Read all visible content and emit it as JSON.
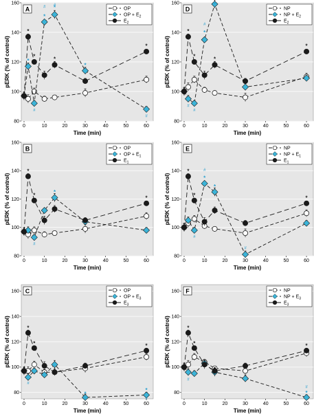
{
  "colors": {
    "panel_bg": "#e6e6e6",
    "black": "#1a1a1a",
    "blue": "#3cb4d8",
    "open": "#ffffff",
    "star_black": "#222222",
    "star_blue": "#2aa0d0"
  },
  "chart_data": [
    {
      "type": "line",
      "panel": "A",
      "xlabel": "Time (min)",
      "ylabel": "pERK (% of control)",
      "xlim": [
        0,
        62
      ],
      "ylim": [
        80,
        160
      ],
      "xticks": [
        0,
        10,
        20,
        30,
        40,
        50,
        60
      ],
      "yticks": [
        80,
        100,
        120,
        140,
        160
      ],
      "x": [
        0,
        2,
        5,
        10,
        15,
        30,
        60
      ],
      "series": [
        {
          "name": "OP",
          "marker": "open-circle",
          "values": [
            97,
            95,
            100,
            95,
            96,
            99,
            108
          ]
        },
        {
          "name": "OP + E2",
          "marker": "blue-diamond",
          "values": [
            97,
            117,
            92,
            147,
            152,
            114,
            88
          ]
        },
        {
          "name": "E2",
          "marker": "black-circle",
          "values": [
            97,
            137,
            120,
            111,
            118,
            107,
            127
          ]
        }
      ],
      "legend": [
        {
          "text": "OP",
          "sub": ""
        },
        {
          "text": "OP + E",
          "sub": "2"
        },
        {
          "text": "E",
          "sub": "2"
        }
      ],
      "annotations": [
        {
          "x": 2,
          "y": 141,
          "t": "*",
          "c": "k"
        },
        {
          "x": 2,
          "y": 121,
          "t": "*",
          "c": "b"
        },
        {
          "x": 5,
          "y": 124,
          "t": "*",
          "c": "k"
        },
        {
          "x": 5,
          "y": 88,
          "t": "#",
          "c": "b"
        },
        {
          "x": 10,
          "y": 151,
          "t": "*",
          "c": "b"
        },
        {
          "x": 10,
          "y": 158,
          "t": "#",
          "c": "b"
        },
        {
          "x": 15,
          "y": 122,
          "t": "*",
          "c": "k"
        },
        {
          "x": 15,
          "y": 157,
          "t": "*",
          "c": "b"
        },
        {
          "x": 15,
          "y": 162,
          "t": "#",
          "c": "b"
        },
        {
          "x": 30,
          "y": 118,
          "t": "*",
          "c": "b"
        },
        {
          "x": 60,
          "y": 131,
          "t": "*",
          "c": "k"
        },
        {
          "x": 60,
          "y": 84,
          "t": "#",
          "c": "b"
        }
      ]
    },
    {
      "type": "line",
      "panel": "D",
      "xlabel": "Time (min)",
      "ylabel": "pERK (% of control)",
      "xlim": [
        0,
        62
      ],
      "ylim": [
        80,
        160
      ],
      "xticks": [
        0,
        10,
        20,
        30,
        40,
        50,
        60
      ],
      "yticks": [
        80,
        100,
        120,
        140,
        160
      ],
      "x": [
        0,
        2,
        5,
        10,
        15,
        30,
        60
      ],
      "series": [
        {
          "name": "NP",
          "marker": "open-circle",
          "values": [
            100,
            103,
            108,
            101,
            99,
            96,
            110
          ]
        },
        {
          "name": "NP + E2",
          "marker": "blue-diamond",
          "values": [
            100,
            95,
            92,
            135,
            164,
            103,
            109
          ]
        },
        {
          "name": "E2",
          "marker": "black-circle",
          "values": [
            100,
            137,
            120,
            111,
            118,
            107,
            127
          ]
        }
      ],
      "legend": [
        {
          "text": "NP",
          "sub": ""
        },
        {
          "text": "NP + E",
          "sub": "2"
        },
        {
          "text": "E",
          "sub": "2"
        }
      ],
      "annotations": [
        {
          "x": 2,
          "y": 141,
          "t": "*",
          "c": "k"
        },
        {
          "x": 2,
          "y": 91,
          "t": "#",
          "c": "b"
        },
        {
          "x": 5,
          "y": 124,
          "t": "*",
          "c": "k"
        },
        {
          "x": 5,
          "y": 88,
          "t": "#",
          "c": "b"
        },
        {
          "x": 10,
          "y": 140,
          "t": "*",
          "c": "b"
        },
        {
          "x": 10,
          "y": 146,
          "t": "#",
          "c": "b"
        },
        {
          "x": 15,
          "y": 122,
          "t": "*",
          "c": "k"
        },
        {
          "x": 15,
          "y": 168,
          "t": "*",
          "c": "b"
        },
        {
          "x": 60,
          "y": 131,
          "t": "*",
          "c": "k"
        }
      ]
    },
    {
      "type": "line",
      "panel": "B",
      "xlabel": "Time (min)",
      "ylabel": "pERK (% of control)",
      "xlim": [
        0,
        62
      ],
      "ylim": [
        80,
        160
      ],
      "xticks": [
        0,
        10,
        20,
        30,
        40,
        50,
        60
      ],
      "yticks": [
        80,
        100,
        120,
        140,
        160
      ],
      "x": [
        0,
        2,
        5,
        10,
        15,
        30,
        60
      ],
      "series": [
        {
          "name": "OP",
          "marker": "open-circle",
          "values": [
            97,
            95,
            98,
            95,
            96,
            99,
            108
          ]
        },
        {
          "name": "OP + E1",
          "marker": "blue-diamond",
          "values": [
            97,
            98,
            93,
            112,
            121,
            104,
            98
          ]
        },
        {
          "name": "E1",
          "marker": "black-circle",
          "values": [
            97,
            136,
            119,
            105,
            113,
            105,
            117
          ]
        }
      ],
      "legend": [
        {
          "text": "OP",
          "sub": ""
        },
        {
          "text": "OP + E",
          "sub": "1"
        },
        {
          "text": "E",
          "sub": "1"
        }
      ],
      "annotations": [
        {
          "x": 2,
          "y": 140,
          "t": "*",
          "c": "k"
        },
        {
          "x": 5,
          "y": 123,
          "t": "*",
          "c": "k"
        },
        {
          "x": 5,
          "y": 89,
          "t": "#",
          "c": "b"
        },
        {
          "x": 15,
          "y": 125,
          "t": "*",
          "c": "b"
        },
        {
          "x": 60,
          "y": 121,
          "t": "*",
          "c": "k"
        }
      ]
    },
    {
      "type": "line",
      "panel": "E",
      "xlabel": "Time (min)",
      "ylabel": "pERK (% of control)",
      "xlim": [
        0,
        62
      ],
      "ylim": [
        80,
        160
      ],
      "xticks": [
        0,
        10,
        20,
        30,
        40,
        50,
        60
      ],
      "yticks": [
        80,
        100,
        120,
        140,
        160
      ],
      "x": [
        0,
        2,
        5,
        10,
        15,
        30,
        60
      ],
      "series": [
        {
          "name": "NP",
          "marker": "open-circle",
          "values": [
            100,
            103,
            106,
            101,
            99,
            96,
            110
          ]
        },
        {
          "name": "NP + E1",
          "marker": "blue-diamond",
          "values": [
            100,
            105,
            98,
            131,
            125,
            80,
            103
          ]
        },
        {
          "name": "E1",
          "marker": "black-circle",
          "values": [
            100,
            136,
            119,
            104,
            112,
            103,
            117
          ]
        }
      ],
      "legend": [
        {
          "text": "NP",
          "sub": ""
        },
        {
          "text": "NP + E",
          "sub": "1"
        },
        {
          "text": "E",
          "sub": "1"
        }
      ],
      "annotations": [
        {
          "x": 2,
          "y": 140,
          "t": "*",
          "c": "k"
        },
        {
          "x": 5,
          "y": 123,
          "t": "*",
          "c": "k"
        },
        {
          "x": 5,
          "y": 94,
          "t": "#",
          "c": "b"
        },
        {
          "x": 10,
          "y": 135,
          "t": "*",
          "c": "b"
        },
        {
          "x": 10,
          "y": 141,
          "t": "#",
          "c": "b"
        },
        {
          "x": 15,
          "y": 129,
          "t": "*",
          "c": "b"
        },
        {
          "x": 30,
          "y": 86,
          "t": "#",
          "c": "b"
        },
        {
          "x": 60,
          "y": 121,
          "t": "*",
          "c": "k"
        }
      ]
    },
    {
      "type": "line",
      "panel": "C",
      "xlabel": "Time (min)",
      "ylabel": "pERK (% of control)",
      "xlim": [
        0,
        62
      ],
      "ylim": [
        75,
        165
      ],
      "xticks": [
        0,
        10,
        20,
        30,
        40,
        50,
        60
      ],
      "yticks": [
        80,
        100,
        120,
        140,
        160
      ],
      "x": [
        0,
        2,
        5,
        10,
        15,
        30,
        60
      ],
      "series": [
        {
          "name": "OP",
          "marker": "open-circle",
          "values": [
            97,
            97,
            102,
            96,
            96,
            99,
            108
          ]
        },
        {
          "name": "OP + E3",
          "marker": "blue-diamond",
          "values": [
            97,
            92,
            97,
            94,
            102,
            75,
            78
          ]
        },
        {
          "name": "E3",
          "marker": "black-circle",
          "values": [
            97,
            127,
            115,
            101,
            96,
            101,
            113
          ]
        }
      ],
      "legend": [
        {
          "text": "OP",
          "sub": ""
        },
        {
          "text": "OP + E",
          "sub": "3"
        },
        {
          "text": "E",
          "sub": "3"
        }
      ],
      "annotations": [
        {
          "x": 2,
          "y": 131,
          "t": "*",
          "c": "k"
        },
        {
          "x": 5,
          "y": 119,
          "t": "*",
          "c": "k"
        },
        {
          "x": 2,
          "y": 88,
          "t": "#",
          "c": "b"
        },
        {
          "x": 30,
          "y": 79,
          "t": "*",
          "c": "b"
        },
        {
          "x": 30,
          "y": 73,
          "t": "#",
          "c": "b"
        },
        {
          "x": 60,
          "y": 117,
          "t": "*",
          "c": "k"
        },
        {
          "x": 60,
          "y": 82,
          "t": "*",
          "c": "b"
        },
        {
          "x": 60,
          "y": 76,
          "t": "#",
          "c": "b"
        }
      ]
    },
    {
      "type": "line",
      "panel": "F",
      "xlabel": "Time (min)",
      "ylabel": "pERK (% of control)",
      "xlim": [
        0,
        62
      ],
      "ylim": [
        75,
        165
      ],
      "xticks": [
        0,
        10,
        20,
        30,
        40,
        50,
        60
      ],
      "yticks": [
        80,
        100,
        120,
        140,
        160
      ],
      "x": [
        0,
        2,
        5,
        10,
        15,
        30,
        60
      ],
      "series": [
        {
          "name": "NP",
          "marker": "open-circle",
          "values": [
            100,
            102,
            108,
            104,
            99,
            97,
            111
          ]
        },
        {
          "name": "NP + E3",
          "marker": "blue-diamond",
          "values": [
            100,
            96,
            95,
            103,
            96,
            91,
            76
          ]
        },
        {
          "name": "E3",
          "marker": "black-circle",
          "values": [
            100,
            127,
            115,
            102,
            97,
            101,
            113
          ]
        }
      ],
      "legend": [
        {
          "text": "NP",
          "sub": ""
        },
        {
          "text": "NP + E",
          "sub": "3"
        },
        {
          "text": "E",
          "sub": "3"
        }
      ],
      "annotations": [
        {
          "x": 2,
          "y": 131,
          "t": "*",
          "c": "k"
        },
        {
          "x": 5,
          "y": 119,
          "t": "*",
          "c": "k"
        },
        {
          "x": 2,
          "y": 91,
          "t": "#",
          "c": "b"
        },
        {
          "x": 60,
          "y": 117,
          "t": "*",
          "c": "k"
        },
        {
          "x": 60,
          "y": 80,
          "t": "*",
          "c": "b"
        },
        {
          "x": 60,
          "y": 85,
          "t": "#",
          "c": "b"
        }
      ]
    }
  ]
}
